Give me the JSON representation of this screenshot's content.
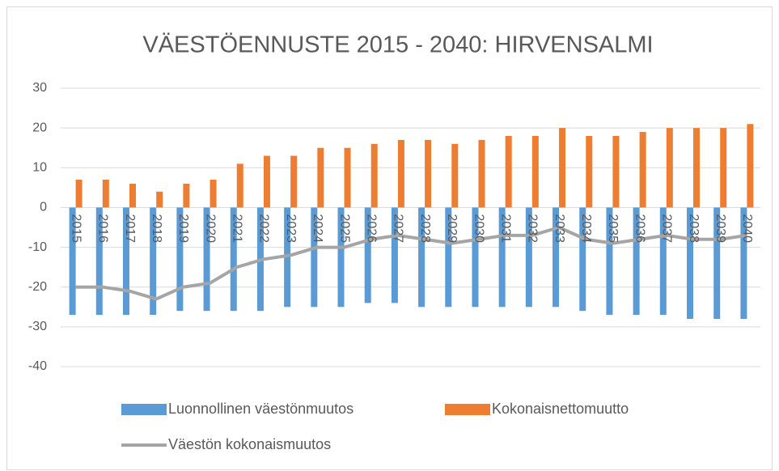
{
  "chart_data": {
    "type": "bar",
    "title": "VÄESTÖENNUSTE 2015 - 2040: HIRVENSALMI",
    "categories": [
      "2015",
      "2016",
      "2017",
      "2018",
      "2019",
      "2020",
      "2021",
      "2022",
      "2023",
      "2024",
      "2025",
      "2026",
      "2027",
      "2028",
      "2029",
      "2030",
      "2031",
      "2032",
      "2033",
      "2034",
      "2035",
      "2036",
      "2037",
      "2038",
      "2039",
      "2040"
    ],
    "series": [
      {
        "name": "Luonnollinen väestönmuutos",
        "type": "bar",
        "color": "#5b9bd5",
        "values": [
          -27,
          -27,
          -27,
          -27,
          -26,
          -26,
          -26,
          -26,
          -25,
          -25,
          -25,
          -24,
          -24,
          -25,
          -25,
          -25,
          -25,
          -25,
          -25,
          -26,
          -27,
          -27,
          -27,
          -28,
          -28,
          -28
        ]
      },
      {
        "name": "Kokonaisnettomuutto",
        "type": "bar",
        "color": "#ed7d31",
        "values": [
          7,
          7,
          6,
          4,
          6,
          7,
          11,
          13,
          13,
          15,
          15,
          16,
          17,
          17,
          16,
          17,
          18,
          18,
          20,
          18,
          18,
          19,
          20,
          20,
          20,
          21
        ]
      },
      {
        "name": "Väestön kokonaismuutos",
        "type": "line",
        "color": "#a5a5a5",
        "values": [
          -20,
          -20,
          -21,
          -23,
          -20,
          -19,
          -15,
          -13,
          -12,
          -10,
          -10,
          -8,
          -7,
          -8,
          -9,
          -8,
          -7,
          -7,
          -5,
          -8,
          -9,
          -8,
          -7,
          -8,
          -8,
          -7
        ]
      }
    ],
    "ylim": [
      -40,
      30
    ],
    "yticks": [
      -40,
      -30,
      -20,
      -10,
      0,
      10,
      20,
      30
    ],
    "grid": true
  }
}
